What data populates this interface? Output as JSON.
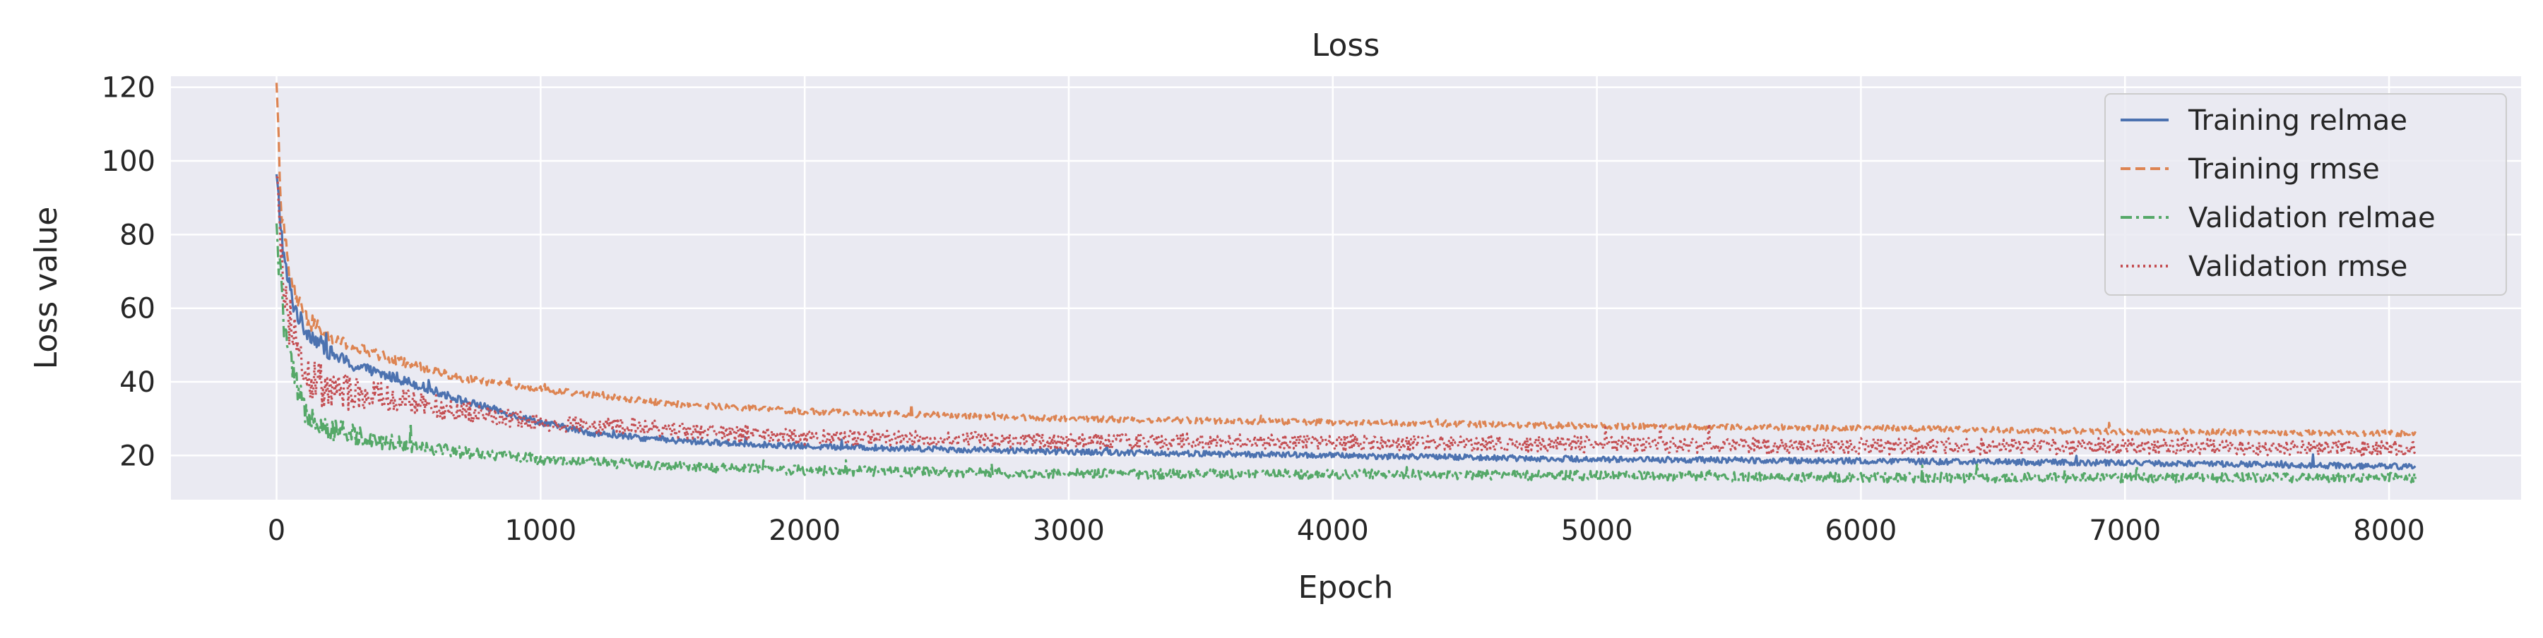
{
  "chart_data": {
    "type": "line",
    "title": "Loss",
    "xlabel": "Epoch",
    "ylabel": "Loss value",
    "xlim": [
      -400,
      8500
    ],
    "ylim": [
      8,
      123
    ],
    "xticks": [
      0,
      1000,
      2000,
      3000,
      4000,
      5000,
      6000,
      7000,
      8000
    ],
    "yticks": [
      20,
      40,
      60,
      80,
      100,
      120
    ],
    "grid": true,
    "legend_position": "top-right",
    "x_max": 8100,
    "series": [
      {
        "name": "Training relmae",
        "color": "#4c72b0",
        "dash": "solid",
        "noise": 0.8,
        "anchors": [
          [
            0,
            95
          ],
          [
            30,
            72
          ],
          [
            60,
            62
          ],
          [
            100,
            55
          ],
          [
            200,
            48
          ],
          [
            300,
            44
          ],
          [
            500,
            40
          ],
          [
            700,
            35
          ],
          [
            1000,
            29
          ],
          [
            1200,
            26
          ],
          [
            1500,
            24
          ],
          [
            2000,
            22.5
          ],
          [
            3000,
            21
          ],
          [
            4000,
            20
          ],
          [
            5000,
            19
          ],
          [
            6000,
            18.5
          ],
          [
            7000,
            18
          ],
          [
            8100,
            17
          ]
        ]
      },
      {
        "name": "Training rmse",
        "color": "#dd8452",
        "dash": "dashed",
        "noise": 0.8,
        "anchors": [
          [
            0,
            118
          ],
          [
            20,
            85
          ],
          [
            50,
            68
          ],
          [
            100,
            58
          ],
          [
            200,
            52
          ],
          [
            300,
            49
          ],
          [
            500,
            45
          ],
          [
            700,
            41
          ],
          [
            1000,
            38
          ],
          [
            1500,
            34
          ],
          [
            2000,
            32
          ],
          [
            3000,
            30
          ],
          [
            4000,
            29
          ],
          [
            5000,
            28
          ],
          [
            6000,
            27.5
          ],
          [
            7000,
            26.5
          ],
          [
            8100,
            26
          ]
        ]
      },
      {
        "name": "Validation relmae",
        "color": "#55a868",
        "dash": "dashdot",
        "noise": 1.3,
        "anchors": [
          [
            0,
            80
          ],
          [
            30,
            55
          ],
          [
            60,
            42
          ],
          [
            100,
            33
          ],
          [
            200,
            27
          ],
          [
            400,
            24
          ],
          [
            700,
            21
          ],
          [
            1000,
            19
          ],
          [
            1500,
            17
          ],
          [
            2000,
            16
          ],
          [
            3000,
            15
          ],
          [
            4000,
            15
          ],
          [
            5000,
            14.5
          ],
          [
            6000,
            14
          ],
          [
            7000,
            14
          ],
          [
            8100,
            14
          ]
        ]
      },
      {
        "name": "Validation rmse",
        "color": "#c44e52",
        "dash": "dotted",
        "noise": 2.2,
        "anchors": [
          [
            0,
            90
          ],
          [
            30,
            65
          ],
          [
            60,
            52
          ],
          [
            100,
            42
          ],
          [
            200,
            38
          ],
          [
            400,
            36
          ],
          [
            700,
            32
          ],
          [
            1000,
            29
          ],
          [
            1500,
            27
          ],
          [
            2000,
            25
          ],
          [
            3000,
            24
          ],
          [
            4000,
            23.5
          ],
          [
            5000,
            23
          ],
          [
            6000,
            22.5
          ],
          [
            7000,
            22.5
          ],
          [
            8100,
            22
          ]
        ]
      }
    ]
  }
}
